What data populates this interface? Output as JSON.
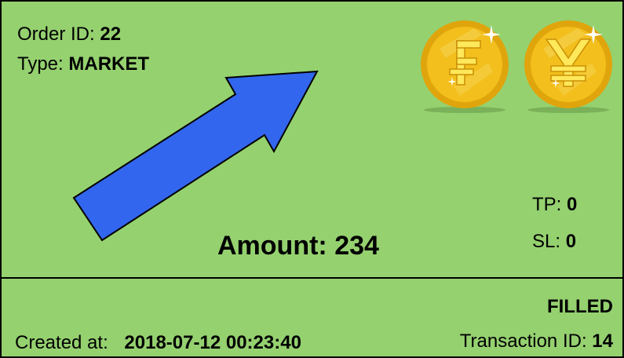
{
  "order": {
    "id_label": "Order ID:",
    "id_value": "22",
    "type_label": "Type:",
    "type_value": "MARKET"
  },
  "levels": {
    "tp_label": "TP:",
    "tp_value": "0",
    "sl_label": "SL:",
    "sl_value": "0"
  },
  "amount": {
    "label": "Amount:",
    "value": "234"
  },
  "footer": {
    "status": "FILLED",
    "created_label": "Created at:",
    "created_value": "2018-07-12 00:23:40",
    "txid_label": "Transaction ID:",
    "txid_value": "14"
  },
  "icons": {
    "direction": "up-right-arrow-icon",
    "currency_1": "franc-coin-icon",
    "currency_2": "yen-coin-icon"
  },
  "colors": {
    "card_background": "#95d16f",
    "arrow_fill": "#3366ee",
    "coin_gold": "#f2bf1d",
    "coin_symbol": "#ffe85a"
  }
}
